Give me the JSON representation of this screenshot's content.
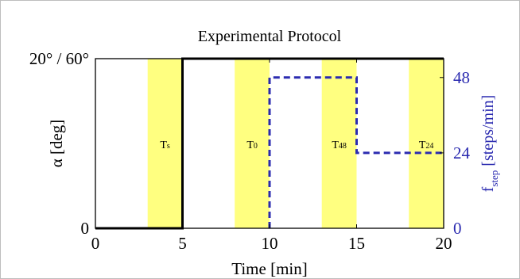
{
  "chart_data": {
    "type": "line",
    "title": "Experimental Protocol",
    "xlabel": "Time [min]",
    "xlim": [
      0,
      20
    ],
    "x_ticks": [
      "0",
      "5",
      "10",
      "15",
      "20"
    ],
    "y_left": {
      "label": "α [deg]",
      "tick_labels": [
        "0",
        "20° / 60°"
      ],
      "ylim": [
        0,
        1
      ]
    },
    "y_right": {
      "label_main": "f",
      "label_sub": "step",
      "label_suffix": " [steps/min]",
      "tick_labels": [
        "0",
        "24",
        "48"
      ],
      "ylim": [
        0,
        54
      ],
      "color": "#2b2bb0"
    },
    "shaded_periods": [
      {
        "label": "T",
        "sub": "s",
        "x": [
          3,
          5
        ]
      },
      {
        "label": "T",
        "sub": "0",
        "x": [
          8,
          10
        ]
      },
      {
        "label": "T",
        "sub": "48",
        "x": [
          13,
          15
        ]
      },
      {
        "label": "T",
        "sub": "24",
        "x": [
          18,
          20
        ]
      }
    ],
    "shade_color": "#ffff80",
    "series": [
      {
        "axis": "left",
        "style": "solid",
        "color": "#000000",
        "points": [
          [
            0,
            0
          ],
          [
            5,
            0
          ],
          [
            5,
            1
          ],
          [
            20,
            1
          ]
        ]
      },
      {
        "axis": "right",
        "style": "dashed",
        "color": "#2b2bb0",
        "points": [
          [
            10,
            0
          ],
          [
            10,
            48
          ],
          [
            15,
            48
          ],
          [
            15,
            24
          ],
          [
            20,
            24
          ]
        ]
      }
    ]
  }
}
